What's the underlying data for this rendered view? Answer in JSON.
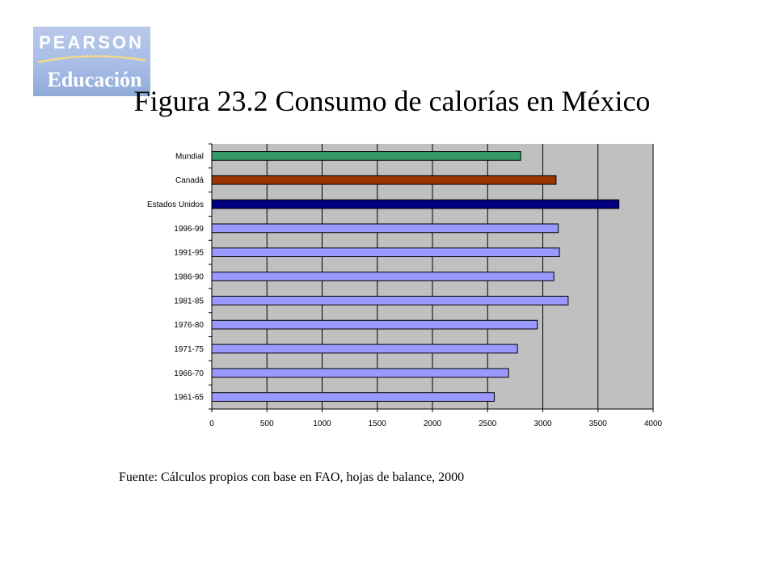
{
  "logo": {
    "brand": "PEARSON",
    "sub": "Educación"
  },
  "title": "Figura 23.2 Consumo de calorías en México",
  "source": "Fuente: Cálculos propios con base en FAO, hojas de balance, 2000",
  "chart_data": {
    "type": "bar",
    "orientation": "horizontal",
    "title": "Figura 23.2 Consumo de calorías en México",
    "xlabel": "",
    "ylabel": "",
    "xlim": [
      0,
      4000
    ],
    "x_ticks": [
      "0",
      "500",
      "1000",
      "1500",
      "2000",
      "2500",
      "3000",
      "3500",
      "4000"
    ],
    "grid": "vertical",
    "legend": "none",
    "plot_background": "#c0c0c0",
    "categories": [
      "1961-65",
      "1966-70",
      "1971-75",
      "1976-80",
      "1981-85",
      "1986-90",
      "1991-95",
      "1996-99",
      "Estados Unidos",
      "Canadá",
      "Mundial"
    ],
    "values": [
      2560,
      2690,
      2770,
      2950,
      3230,
      3100,
      3150,
      3140,
      3690,
      3120,
      2800
    ],
    "colors": [
      "#9999ff",
      "#9999ff",
      "#9999ff",
      "#9999ff",
      "#9999ff",
      "#9999ff",
      "#9999ff",
      "#9999ff",
      "#000080",
      "#993300",
      "#339966"
    ]
  }
}
